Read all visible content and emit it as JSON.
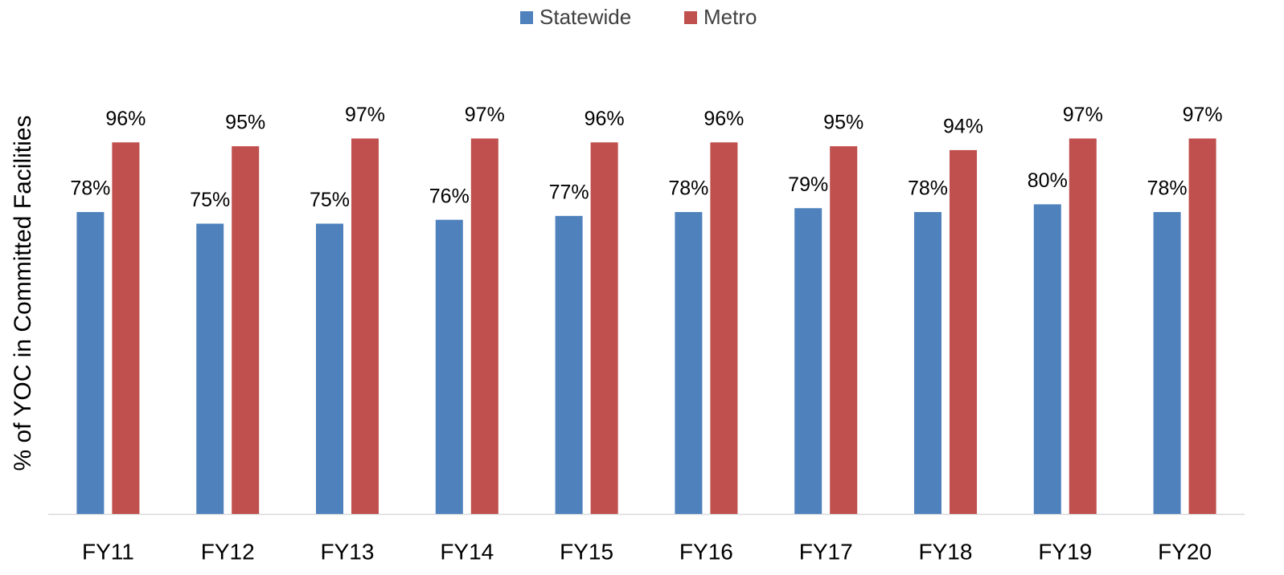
{
  "chart_data": {
    "type": "bar",
    "y_label": "% of YOC in Committed Facilities",
    "categories": [
      "FY11",
      "FY12",
      "FY13",
      "FY14",
      "FY15",
      "FY16",
      "FY17",
      "FY18",
      "FY19",
      "FY20"
    ],
    "series": [
      {
        "name": "Statewide",
        "color": "#4f81bd",
        "values": [
          78,
          75,
          75,
          76,
          77,
          78,
          79,
          78,
          80,
          78
        ],
        "value_labels": [
          "78%",
          "75%",
          "75%",
          "76%",
          "77%",
          "78%",
          "79%",
          "78%",
          "80%",
          "78%"
        ]
      },
      {
        "name": "Metro",
        "color": "#c0504d",
        "values": [
          96,
          95,
          97,
          97,
          96,
          96,
          95,
          94,
          97,
          97
        ],
        "value_labels": [
          "96%",
          "95%",
          "97%",
          "97%",
          "96%",
          "96%",
          "95%",
          "94%",
          "97%",
          "97%"
        ]
      }
    ],
    "ylim": [
      0,
      100
    ],
    "legend": "top"
  }
}
